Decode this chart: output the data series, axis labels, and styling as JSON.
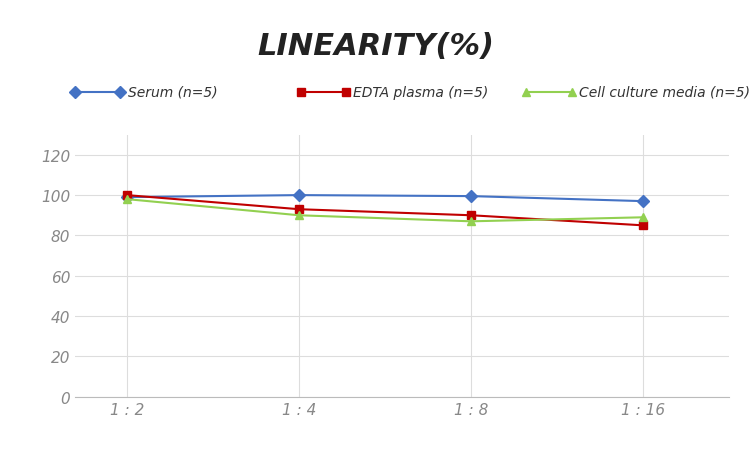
{
  "title": "LINEARITY(%)",
  "x_labels": [
    "1 : 2",
    "1 : 4",
    "1 : 8",
    "1 : 16"
  ],
  "x_positions": [
    0,
    1,
    2,
    3
  ],
  "series": [
    {
      "label": "Serum (n=5)",
      "values": [
        99,
        100,
        99.5,
        97
      ],
      "color": "#4472C4",
      "marker": "D",
      "markersize": 6,
      "linewidth": 1.5
    },
    {
      "label": "EDTA plasma (n=5)",
      "values": [
        100,
        93,
        90,
        85
      ],
      "color": "#C00000",
      "marker": "s",
      "markersize": 6,
      "linewidth": 1.5
    },
    {
      "label": "Cell culture media (n=5)",
      "values": [
        98,
        90,
        87,
        89
      ],
      "color": "#92D050",
      "marker": "^",
      "markersize": 6,
      "linewidth": 1.5
    }
  ],
  "ylim": [
    0,
    130
  ],
  "yticks": [
    0,
    20,
    40,
    60,
    80,
    100,
    120
  ],
  "background_color": "#ffffff",
  "grid_color": "#dddddd",
  "title_fontsize": 22,
  "legend_fontsize": 10,
  "tick_fontsize": 11,
  "tick_color": "#888888"
}
